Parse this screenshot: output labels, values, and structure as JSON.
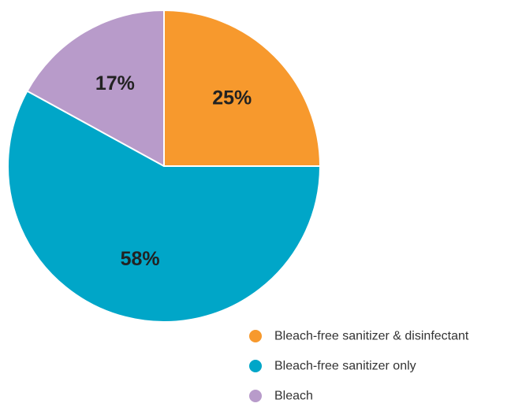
{
  "chart_data": {
    "type": "pie",
    "title": "",
    "start": "top",
    "direction": "clockwise",
    "slices": [
      {
        "name": "Bleach-free sanitizer & disinfectant",
        "value": 25,
        "label": "25%",
        "color": "#f7992d"
      },
      {
        "name": "Bleach-free sanitizer only",
        "value": 58,
        "label": "58%",
        "color": "#00a6c8"
      },
      {
        "name": "Bleach",
        "value": 17,
        "label": "17%",
        "color": "#b89bca"
      }
    ],
    "legend": {
      "placement": "bottom-right",
      "entries": [
        {
          "name": "Bleach-free sanitizer & disinfectant",
          "color": "#f7992d"
        },
        {
          "name": "Bleach-free sanitizer only",
          "color": "#00a6c8"
        },
        {
          "name": "Bleach",
          "color": "#b89bca"
        }
      ]
    }
  }
}
